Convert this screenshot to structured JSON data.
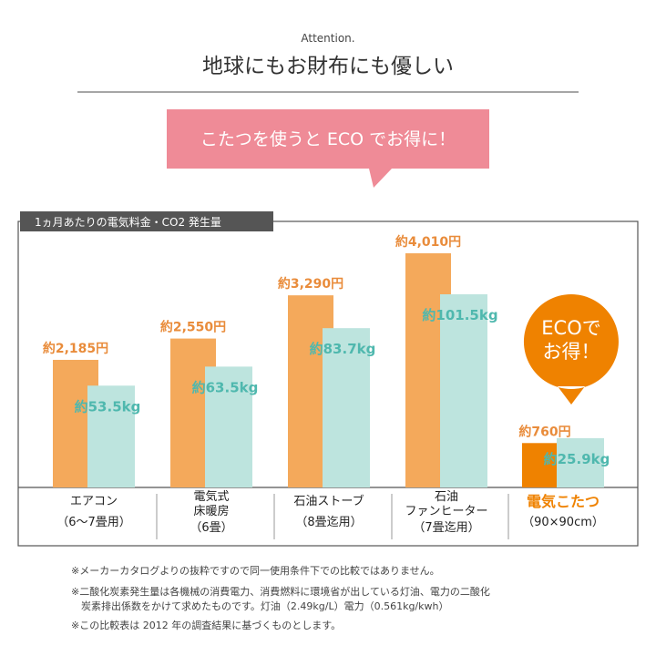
{
  "header": {
    "kicker": "Attention.",
    "title": "地球にもお財布にも優しい",
    "banner": "こたつを使うと ECO でお得に！"
  },
  "chart_data": {
    "type": "bar",
    "title": "1ヵ月あたりの電気料金・CO2 発生量",
    "categories": [
      "エアコン",
      "電気式\n床暖房",
      "石油ストーブ",
      "石油\nファンヒーター",
      "電気こたつ"
    ],
    "category_notes": [
      "（6〜7畳用）",
      "（6畳）",
      "（8畳迄用）",
      "（7畳迄用）",
      "（90×90cm）"
    ],
    "series": [
      {
        "color": "#f4a95b",
        "label_color": "#e98c3b",
        "values": [
          2185,
          2550,
          3290,
          4010,
          760
        ],
        "value_labels": [
          "約2,185円",
          "約2,550円",
          "約3,290円",
          "約4,010円",
          "約760円"
        ]
      },
      {
        "color": "#bde4de",
        "label_color": "#4fb8ae",
        "values": [
          53.5,
          63.5,
          83.7,
          101.5,
          25.9
        ],
        "value_labels": [
          "約53.5kg",
          "約63.5kg",
          "約83.7kg",
          "約101.5kg",
          "約25.9kg"
        ]
      }
    ],
    "highlight_index": 4,
    "highlight_color": "#ef8200",
    "badge": "ECOで\nお得！"
  },
  "footnotes": [
    "※メーカーカタログよりの抜粋ですので同一使用条件下での比較ではありません。",
    "※二酸化炭素発生量は各機械の消費電力、消費燃料に環境省が出している灯油、電力の二酸化\n　炭素排出係数をかけて求めたものです。灯油（2.49kg/L）電力（0.561kg/kwh）",
    "※この比較表は 2012 年の調査結果に基づくものとします。"
  ]
}
